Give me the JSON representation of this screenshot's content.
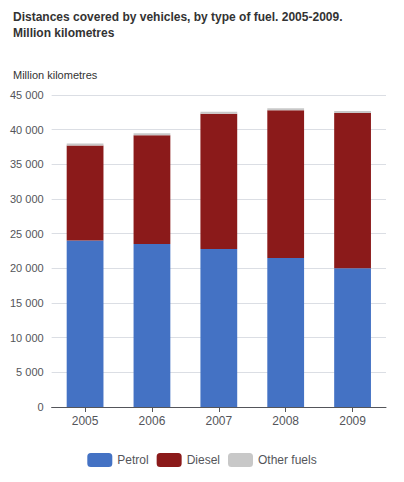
{
  "chart_data": {
    "type": "bar",
    "stacked": true,
    "title": "Distances covered by vehicles, by type of fuel. 2005-2009.",
    "subtitle": "Million kilometres",
    "ylabel": "Million kilometres",
    "categories": [
      "2005",
      "2006",
      "2007",
      "2008",
      "2009"
    ],
    "series": [
      {
        "name": "Petrol",
        "color": "#4472c4",
        "values": [
          24000,
          23500,
          22800,
          21500,
          20000
        ]
      },
      {
        "name": "Diesel",
        "color": "#8b1a1a",
        "values": [
          13700,
          15700,
          19500,
          21300,
          22400
        ]
      },
      {
        "name": "Other fuels",
        "color": "#c8c8c8",
        "values": [
          300,
          300,
          300,
          300,
          300
        ]
      }
    ],
    "ylim": [
      0,
      45000
    ],
    "yticks": [
      0,
      {
        "value": 5000,
        "label": "5 000"
      },
      {
        "value": 10000,
        "label": "10 000"
      },
      {
        "value": 15000,
        "label": "15 000"
      },
      {
        "value": 20000,
        "label": "20 000"
      },
      {
        "value": 25000,
        "label": "25 000"
      },
      {
        "value": 30000,
        "label": "30 000"
      },
      {
        "value": 35000,
        "label": "35 000"
      },
      {
        "value": 40000,
        "label": "40 000"
      },
      {
        "value": 45000,
        "label": "45 000"
      }
    ],
    "grid": true,
    "legend": "bottom"
  }
}
